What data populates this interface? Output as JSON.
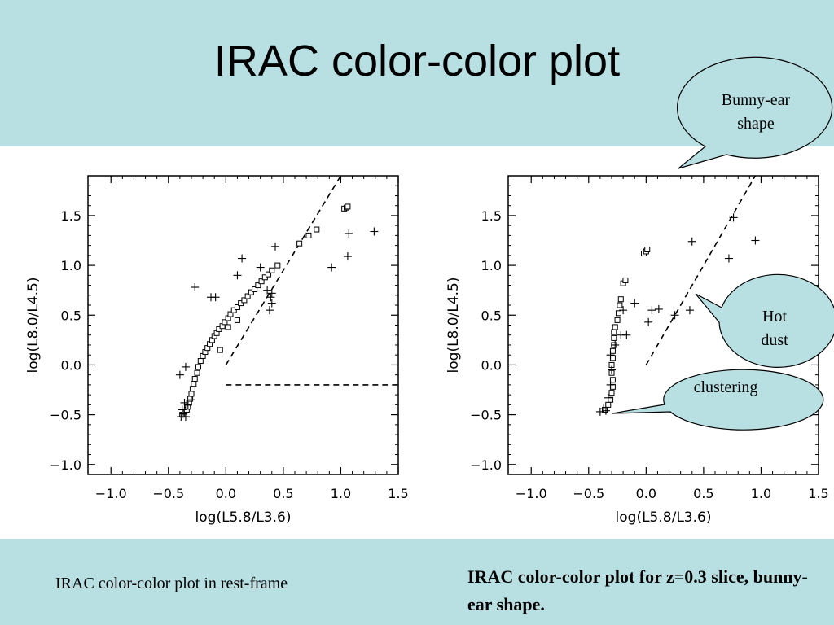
{
  "slide": {
    "title": "IRAC color-color plot",
    "caption_left": "IRAC color-color plot in rest-frame",
    "caption_right": "IRAC color-color plot for z=0.3 slice, bunny- ear shape.",
    "bubbles": {
      "bunny": "Bunny-ear shape",
      "hot": "Hot dust",
      "clustering": "clustering"
    },
    "colors": {
      "band": "#b8dfe2",
      "bubble": "#b8dfe2"
    }
  },
  "chart_data": [
    {
      "type": "scatter",
      "title": "",
      "xlabel": "log(L5.8/L3.6)",
      "ylabel": "log(L8.0/L4.5)",
      "xlim": [
        -1.2,
        1.5
      ],
      "ylim": [
        -1.1,
        1.9
      ],
      "xticks": [
        "-1.0",
        "-0.5",
        "0.0",
        "0.5",
        "1.0",
        "1.5"
      ],
      "yticks": [
        "-1.0",
        "-0.5",
        "0.0",
        "0.5",
        "1.0",
        "1.5"
      ],
      "series": [
        {
          "marker": "square",
          "points": [
            [
              -0.38,
              -0.5
            ],
            [
              -0.36,
              -0.47
            ],
            [
              -0.34,
              -0.45
            ],
            [
              -0.33,
              -0.42
            ],
            [
              -0.32,
              -0.38
            ],
            [
              -0.31,
              -0.34
            ],
            [
              -0.3,
              -0.29
            ],
            [
              -0.29,
              -0.24
            ],
            [
              -0.28,
              -0.19
            ],
            [
              -0.27,
              -0.14
            ],
            [
              -0.25,
              -0.08
            ],
            [
              -0.24,
              -0.02
            ],
            [
              -0.22,
              0.04
            ],
            [
              -0.2,
              0.09
            ],
            [
              -0.18,
              0.13
            ],
            [
              -0.16,
              0.17
            ],
            [
              -0.14,
              0.21
            ],
            [
              -0.12,
              0.25
            ],
            [
              -0.1,
              0.29
            ],
            [
              -0.08,
              0.32
            ],
            [
              -0.06,
              0.36
            ],
            [
              -0.03,
              0.39
            ],
            [
              -0.01,
              0.43
            ],
            [
              0.02,
              0.47
            ],
            [
              0.04,
              0.51
            ],
            [
              0.07,
              0.55
            ],
            [
              0.1,
              0.58
            ],
            [
              0.13,
              0.62
            ],
            [
              0.16,
              0.65
            ],
            [
              0.19,
              0.69
            ],
            [
              0.22,
              0.73
            ],
            [
              0.25,
              0.76
            ],
            [
              0.28,
              0.8
            ],
            [
              0.31,
              0.84
            ],
            [
              0.34,
              0.88
            ],
            [
              0.37,
              0.91
            ],
            [
              0.4,
              0.95
            ],
            [
              0.45,
              1.0
            ],
            [
              -0.05,
              0.15
            ],
            [
              0.02,
              0.38
            ],
            [
              0.1,
              0.45
            ],
            [
              0.64,
              1.22
            ],
            [
              0.72,
              1.3
            ],
            [
              0.79,
              1.36
            ],
            [
              1.03,
              1.57
            ],
            [
              1.05,
              1.58
            ],
            [
              1.06,
              1.59
            ]
          ]
        },
        {
          "marker": "plus",
          "points": [
            [
              -0.39,
              -0.52
            ],
            [
              -0.37,
              -0.49
            ],
            [
              -0.35,
              -0.52
            ],
            [
              -0.38,
              -0.45
            ],
            [
              -0.33,
              -0.4
            ],
            [
              -0.3,
              -0.35
            ],
            [
              -0.36,
              -0.38
            ],
            [
              -0.4,
              -0.1
            ],
            [
              -0.35,
              -0.02
            ],
            [
              -0.27,
              0.78
            ],
            [
              -0.09,
              0.68
            ],
            [
              -0.13,
              0.68
            ],
            [
              0.14,
              1.07
            ],
            [
              0.1,
              0.9
            ],
            [
              0.3,
              0.98
            ],
            [
              0.36,
              0.75
            ],
            [
              0.39,
              0.68
            ],
            [
              0.4,
              0.62
            ],
            [
              0.38,
              0.55
            ],
            [
              0.4,
              0.72
            ],
            [
              0.43,
              1.19
            ],
            [
              0.92,
              0.98
            ],
            [
              1.06,
              1.09
            ],
            [
              1.07,
              1.32
            ],
            [
              1.29,
              1.34
            ]
          ]
        }
      ],
      "reference_lines": [
        {
          "style": "dashed",
          "points": [
            [
              0.0,
              0.0
            ],
            [
              1.0,
              1.9
            ]
          ]
        },
        {
          "style": "dashed",
          "points": [
            [
              0.0,
              -0.2
            ],
            [
              1.5,
              -0.2
            ]
          ]
        }
      ]
    },
    {
      "type": "scatter",
      "title": "",
      "xlabel": "log(L5.8/L3.6)",
      "ylabel": "log(L8.0/L4.5)",
      "xlim": [
        -1.2,
        1.5
      ],
      "ylim": [
        -1.1,
        1.9
      ],
      "xticks": [
        "-1.0",
        "-0.5",
        "0.0",
        "0.5",
        "1.0",
        "1.5"
      ],
      "yticks": [
        "-1.0",
        "-0.5",
        "0.0",
        "0.5",
        "1.0",
        "1.5"
      ],
      "series": [
        {
          "marker": "square",
          "points": [
            [
              -0.36,
              -0.45
            ],
            [
              -0.33,
              -0.4
            ],
            [
              -0.31,
              -0.35
            ],
            [
              -0.3,
              -0.28
            ],
            [
              -0.29,
              -0.22
            ],
            [
              -0.29,
              -0.15
            ],
            [
              -0.3,
              -0.08
            ],
            [
              -0.3,
              0.0
            ],
            [
              -0.29,
              0.07
            ],
            [
              -0.29,
              0.14
            ],
            [
              -0.28,
              0.2
            ],
            [
              -0.28,
              0.27
            ],
            [
              -0.28,
              0.33
            ],
            [
              -0.27,
              0.38
            ],
            [
              -0.25,
              0.45
            ],
            [
              -0.24,
              0.52
            ],
            [
              -0.23,
              0.6
            ],
            [
              -0.22,
              0.66
            ],
            [
              -0.2,
              0.82
            ],
            [
              -0.18,
              0.85
            ],
            [
              -0.02,
              1.12
            ],
            [
              0.0,
              1.14
            ],
            [
              0.01,
              1.16
            ]
          ]
        },
        {
          "marker": "plus",
          "points": [
            [
              -0.4,
              -0.47
            ],
            [
              -0.37,
              -0.44
            ],
            [
              -0.35,
              -0.46
            ],
            [
              -0.33,
              -0.33
            ],
            [
              -0.31,
              -0.2
            ],
            [
              -0.3,
              -0.05
            ],
            [
              -0.31,
              0.1
            ],
            [
              -0.27,
              0.2
            ],
            [
              -0.22,
              0.3
            ],
            [
              -0.2,
              0.55
            ],
            [
              -0.17,
              0.3
            ],
            [
              -0.1,
              0.62
            ],
            [
              0.02,
              0.43
            ],
            [
              0.05,
              0.55
            ],
            [
              0.11,
              0.56
            ],
            [
              0.25,
              0.5
            ],
            [
              0.38,
              0.55
            ],
            [
              0.4,
              1.24
            ],
            [
              0.72,
              1.07
            ],
            [
              0.76,
              1.48
            ],
            [
              0.95,
              1.25
            ]
          ]
        }
      ],
      "reference_lines": [
        {
          "style": "dashed",
          "points": [
            [
              0.0,
              0.0
            ],
            [
              0.95,
              1.9
            ]
          ]
        }
      ]
    }
  ]
}
